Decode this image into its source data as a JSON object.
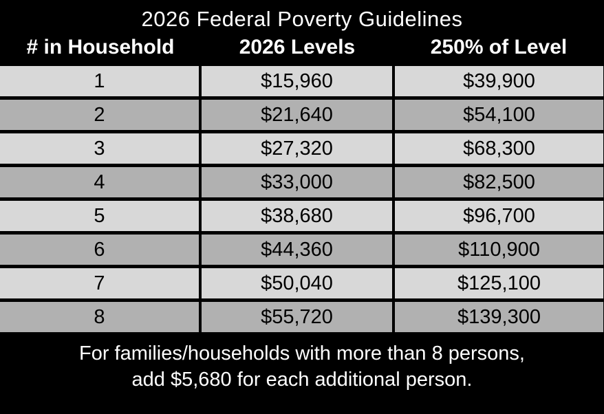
{
  "title": "2026 Federal Poverty Guidelines",
  "chart_data": {
    "type": "table",
    "title": "2026 Federal Poverty Guidelines",
    "columns": [
      "# in Household",
      "2026 Levels",
      "250% of Level"
    ],
    "rows": [
      [
        "1",
        "$15,960",
        "$39,900"
      ],
      [
        "2",
        "$21,640",
        "$54,100"
      ],
      [
        "3",
        "$27,320",
        "$68,300"
      ],
      [
        "4",
        "$33,000",
        "$82,500"
      ],
      [
        "5",
        "$38,680",
        "$96,700"
      ],
      [
        "6",
        "$44,360",
        "$110,900"
      ],
      [
        "7",
        "$50,040",
        "$125,100"
      ],
      [
        "8",
        "$55,720",
        "$139,300"
      ]
    ],
    "footnote": "For families/households with more than 8 persons, add $5,680 for each additional person.",
    "layout": {
      "background": "#000000",
      "header_text_color": "#ffffff",
      "row_color_light": "#d8d8d8",
      "row_color_dark": "#b1b1b1",
      "cell_text_color": "#000000"
    }
  },
  "footer": {
    "line1": "For families/households with more than 8 persons,",
    "line2": "add $5,680 for each additional person."
  }
}
